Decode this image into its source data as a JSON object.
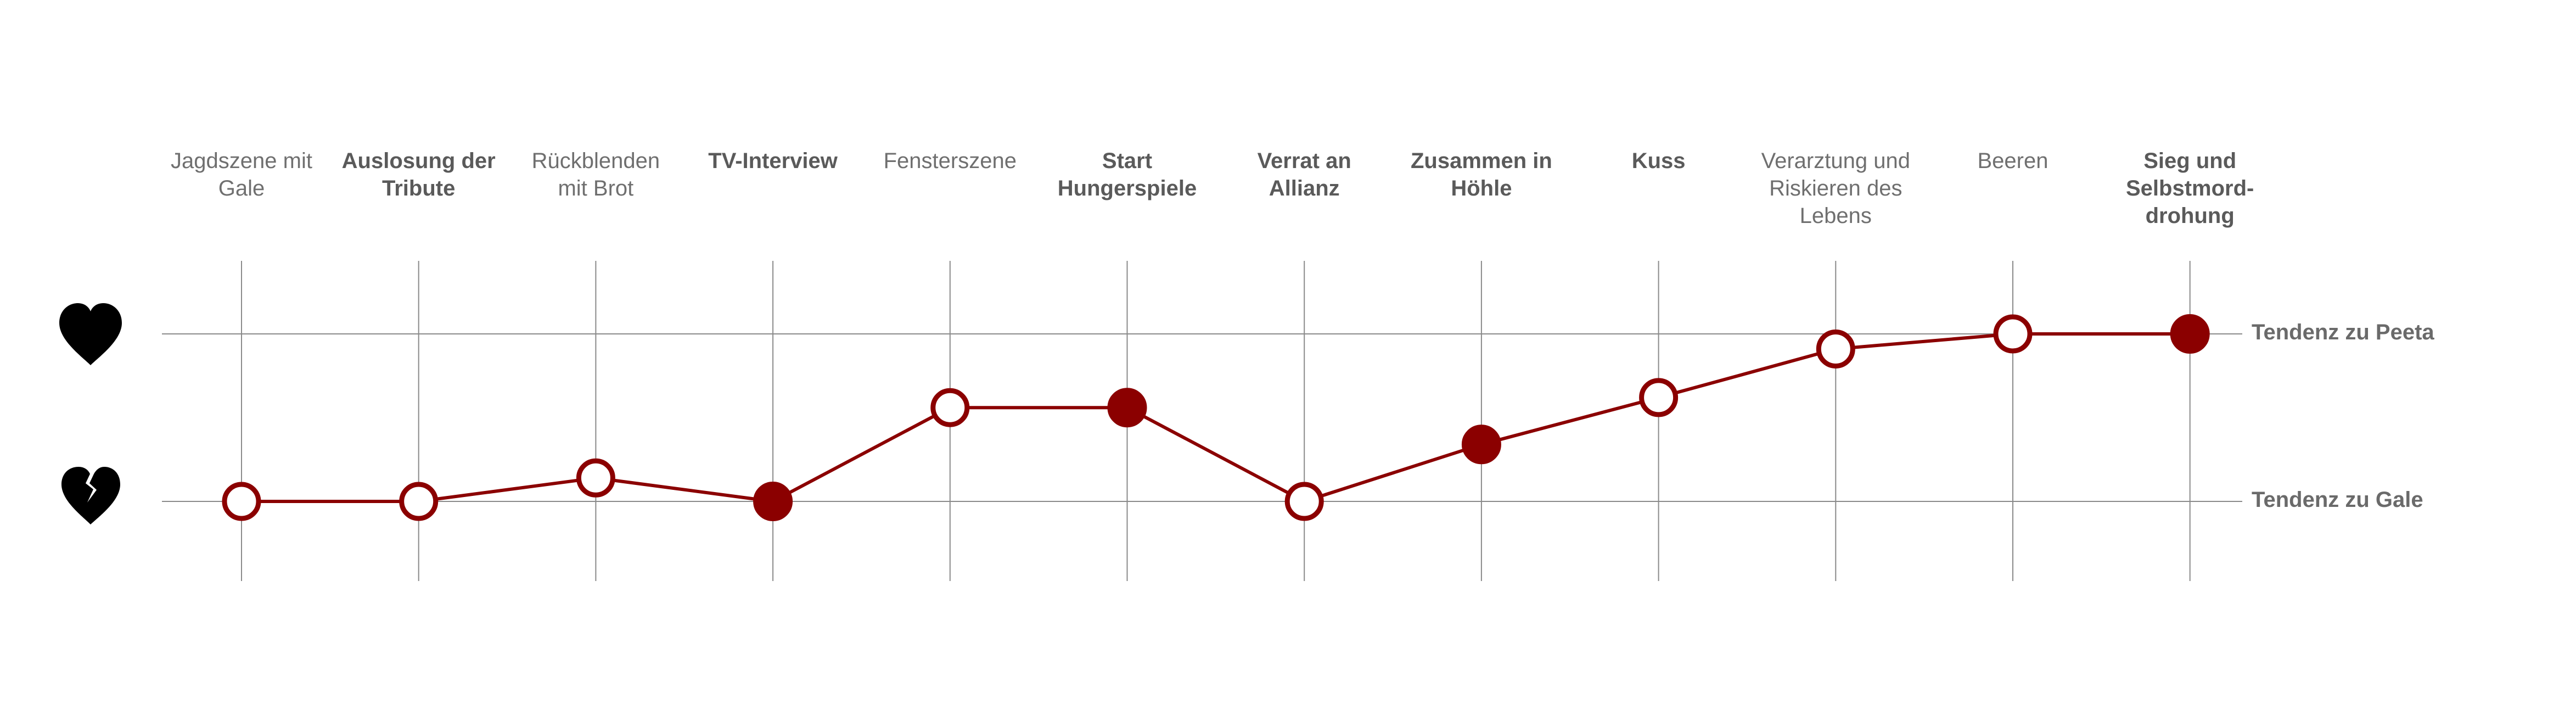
{
  "chart_data": {
    "type": "line",
    "categories": [
      "Jagdszene mit\nGale",
      "Auslosung der\nTribute",
      "Rückblenden\nmit Brot",
      "TV-Interview",
      "Fensterszene",
      "Start\nHungerspiele",
      "Verrat an\nAllianz",
      "Zusammen in\nHöhle",
      "Kuss",
      "Verarztung und\nRiskieren des\nLebens",
      "Beeren",
      "Sieg und\nSelbstmord-\ndrohung"
    ],
    "category_bold": [
      false,
      true,
      false,
      true,
      false,
      true,
      true,
      true,
      true,
      false,
      false,
      true
    ],
    "values": [
      0.0,
      0.0,
      0.14,
      0.0,
      0.56,
      0.56,
      0.0,
      0.34,
      0.62,
      0.91,
      1.0,
      1.0
    ],
    "filled": [
      false,
      false,
      false,
      true,
      false,
      true,
      false,
      true,
      false,
      false,
      false,
      true
    ],
    "ylim": [
      0,
      1
    ],
    "levels": [
      {
        "value": 1,
        "label": "Tendenz zu Peeta",
        "icon": "heart-icon"
      },
      {
        "value": 0,
        "label": "Tendenz zu Gale",
        "icon": "broken-heart-icon"
      }
    ],
    "grid": true,
    "colors": {
      "line": "#8b0000",
      "marker_fill": "#8b0000",
      "marker_hollow": "#ffffff",
      "grid": "#8a8a8a",
      "icon": "#000000"
    }
  }
}
